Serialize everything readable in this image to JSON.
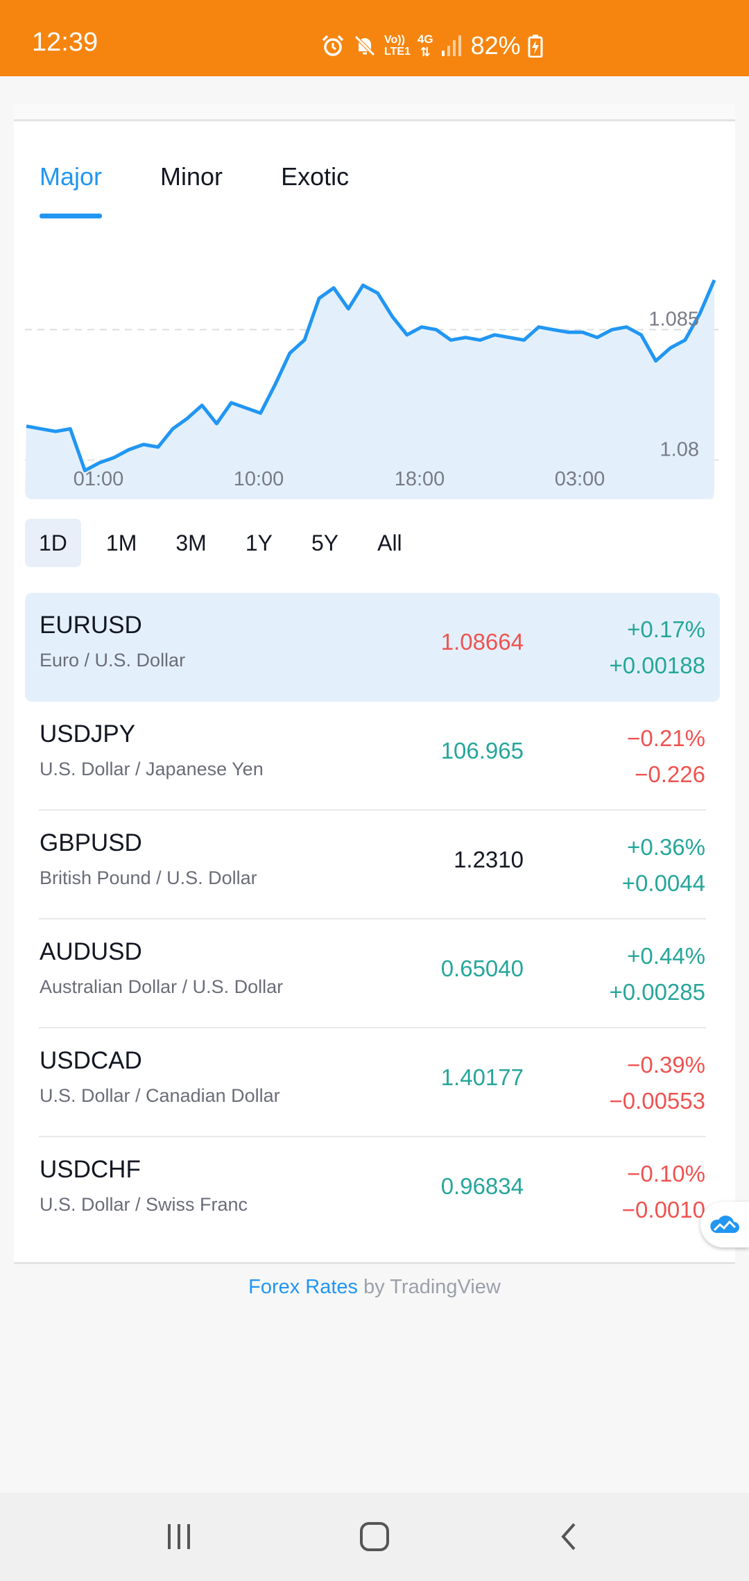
{
  "status_bar": {
    "time": "12:39",
    "network_top": "Vo))",
    "network_bottom": "LTE1",
    "signal_type": "4G",
    "battery": "82%",
    "color": "#f6850f"
  },
  "tabs": [
    {
      "label": "Major",
      "active": true
    },
    {
      "label": "Minor",
      "active": false
    },
    {
      "label": "Exotic",
      "active": false
    }
  ],
  "chart_data": {
    "type": "area",
    "title": "",
    "x_tick_labels": [
      "01:00",
      "10:00",
      "18:00",
      "03:00"
    ],
    "y_tick_labels": [
      "1.085",
      "1.08"
    ],
    "ylim": [
      1.0785,
      1.0878
    ],
    "grid": true,
    "series": [
      {
        "values": [
          1.0813,
          1.0812,
          1.0811,
          1.0812,
          1.0796,
          1.0799,
          1.0801,
          1.0804,
          1.0806,
          1.0805,
          1.0812,
          1.0816,
          1.0821,
          1.0814,
          1.0822,
          1.082,
          1.0818,
          1.0829,
          1.0841,
          1.0846,
          1.0862,
          1.0866,
          1.0858,
          1.0867,
          1.0864,
          1.0855,
          1.0848,
          1.0851,
          1.085,
          1.0846,
          1.0847,
          1.0846,
          1.0848,
          1.0847,
          1.0846,
          1.0851,
          1.085,
          1.0849,
          1.0849,
          1.0847,
          1.085,
          1.0851,
          1.0848,
          1.0838,
          1.0843,
          1.0846,
          1.0856,
          1.0869
        ],
        "color": "#2196f3"
      }
    ]
  },
  "ranges": [
    {
      "label": "1D",
      "active": true
    },
    {
      "label": "1M",
      "active": false
    },
    {
      "label": "3M",
      "active": false
    },
    {
      "label": "1Y",
      "active": false
    },
    {
      "label": "5Y",
      "active": false
    },
    {
      "label": "All",
      "active": false
    }
  ],
  "pairs": [
    {
      "symbol": "EURUSD",
      "name": "Euro / U.S. Dollar",
      "price": "1.08664",
      "price_dir": "down",
      "change_pct": "+0.17%",
      "change_abs": "+0.00188",
      "change_dir": "up",
      "selected": true
    },
    {
      "symbol": "USDJPY",
      "name": "U.S. Dollar / Japanese Yen",
      "price": "106.965",
      "price_dir": "up",
      "change_pct": "−0.21%",
      "change_abs": "−0.226",
      "change_dir": "down",
      "selected": false
    },
    {
      "symbol": "GBPUSD",
      "name": "British Pound / U.S. Dollar",
      "price": "1.2310",
      "price_dir": "neutral",
      "change_pct": "+0.36%",
      "change_abs": "+0.0044",
      "change_dir": "up",
      "selected": false
    },
    {
      "symbol": "AUDUSD",
      "name": "Australian Dollar / U.S. Dollar",
      "price": "0.65040",
      "price_dir": "up",
      "change_pct": "+0.44%",
      "change_abs": "+0.00285",
      "change_dir": "up",
      "selected": false
    },
    {
      "symbol": "USDCAD",
      "name": "U.S. Dollar / Canadian Dollar",
      "price": "1.40177",
      "price_dir": "up",
      "change_pct": "−0.39%",
      "change_abs": "−0.00553",
      "change_dir": "down",
      "selected": false
    },
    {
      "symbol": "USDCHF",
      "name": "U.S. Dollar / Swiss Franc",
      "price": "0.96834",
      "price_dir": "up",
      "change_pct": "−0.10%",
      "change_abs": "−0.0010",
      "change_dir": "down",
      "selected": false
    }
  ],
  "footer": {
    "link_text": "Forex Rates",
    "by_text": " by TradingView"
  },
  "icons": {
    "alarm": "alarm-icon",
    "mute": "mute-icon",
    "signal": "signal-icon",
    "battery": "battery-charging-icon",
    "tradingview": "tradingview-cloud-icon",
    "nav_recents": "recents-icon",
    "nav_home": "home-icon",
    "nav_back": "back-icon"
  }
}
